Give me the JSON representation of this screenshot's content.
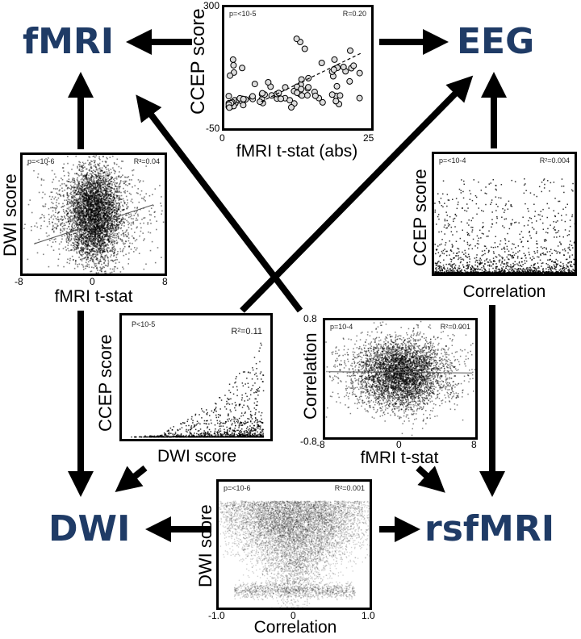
{
  "nodes": {
    "fmri": "fMRI",
    "eeg": "EEG",
    "dwi": "DWI",
    "rsfmri": "rsfMRI"
  },
  "plots": {
    "top": {
      "ylabel": "CCEP score",
      "xlabel": "fMRI t-stat (abs)",
      "p": "p=<10-5",
      "stat": "R=0.20",
      "yticks": [
        "300",
        "-50"
      ],
      "xticks": [
        "0",
        "25"
      ]
    },
    "left": {
      "ylabel": "DWI score",
      "xlabel": "fMRI t-stat",
      "p": "p=<10-6",
      "stat": "R²=0.04",
      "xticks": [
        "-8",
        "0",
        "8"
      ]
    },
    "right": {
      "ylabel": "CCEP score",
      "xlabel": "Correlation",
      "p": "p=<10-4",
      "stat": "R²=0.004"
    },
    "midleft": {
      "ylabel": "CCEP score",
      "xlabel": "DWI score",
      "p": "P<10-5",
      "stat": "R²=0.11"
    },
    "midright": {
      "ylabel": "Correlation",
      "xlabel": "fMRI t-stat",
      "p": "p=10-4",
      "stat": "R²=0.001",
      "yticks": [
        "0.8",
        "-0.8"
      ],
      "xticks": [
        "-8",
        "0",
        "8"
      ]
    },
    "bottom": {
      "ylabel": "DWI score",
      "xlabel": "Correlation",
      "p": "p=<10-6",
      "stat": "R²=0.001",
      "xticks": [
        "-1.0",
        "0",
        "1.0"
      ]
    }
  },
  "chart_data": [
    {
      "type": "scatter",
      "title": "",
      "xlabel": "fMRI t-stat (abs)",
      "ylabel": "CCEP score",
      "xlim": [
        0,
        25
      ],
      "ylim": [
        -50,
        300
      ],
      "annotations": [
        "p=<10-5",
        "R=0.20"
      ]
    },
    {
      "type": "scatter",
      "xlabel": "fMRI t-stat",
      "ylabel": "DWI score",
      "xlim": [
        -8,
        8
      ],
      "annotations": [
        "p=<10-6",
        "R²=0.04"
      ]
    },
    {
      "type": "scatter",
      "xlabel": "Correlation",
      "ylabel": "CCEP score",
      "annotations": [
        "p=<10-4",
        "R²=0.004"
      ]
    },
    {
      "type": "scatter",
      "xlabel": "DWI score",
      "ylabel": "CCEP score",
      "annotations": [
        "P<10-5",
        "R²=0.11"
      ]
    },
    {
      "type": "scatter",
      "xlabel": "fMRI t-stat",
      "ylabel": "Correlation",
      "xlim": [
        -8,
        8
      ],
      "ylim": [
        -0.8,
        0.8
      ],
      "annotations": [
        "p=10-4",
        "R²=0.001"
      ]
    },
    {
      "type": "scatter",
      "xlabel": "Correlation",
      "ylabel": "DWI score",
      "xlim": [
        -1.0,
        1.0
      ],
      "annotations": [
        "p=<10-6",
        "R²=0.001"
      ]
    }
  ],
  "colors": {
    "node": "#1f3b66",
    "ink": "#000000"
  }
}
